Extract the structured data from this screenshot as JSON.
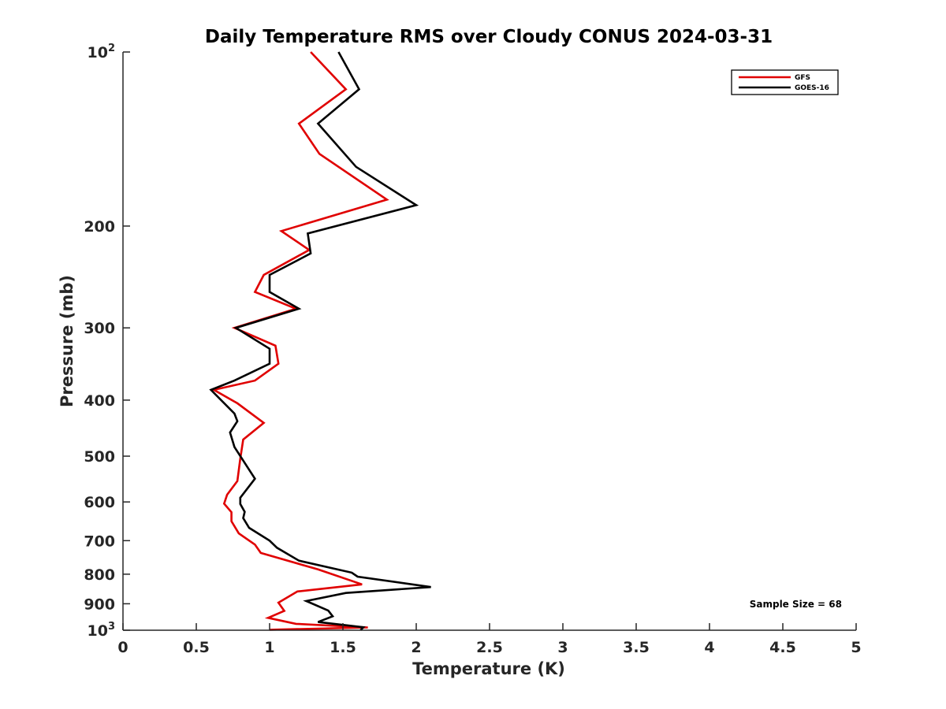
{
  "chart_data": {
    "type": "line",
    "title": "Daily Temperature RMS over Cloudy CONUS 2024-03-31",
    "xlabel": "Temperature (K)",
    "ylabel": "Pressure (mb)",
    "xlim": [
      0,
      5
    ],
    "ylim": [
      100,
      1000
    ],
    "y_scale": "log",
    "y_reversed": true,
    "x_ticks": [
      "0",
      "0.5",
      "1",
      "1.5",
      "2",
      "2.5",
      "3",
      "3.5",
      "4",
      "4.5",
      "5"
    ],
    "y_ticks": [
      {
        "value": 100,
        "label": "10",
        "sup": "2"
      },
      {
        "value": 200,
        "label": "200",
        "sup": ""
      },
      {
        "value": 300,
        "label": "300",
        "sup": ""
      },
      {
        "value": 400,
        "label": "400",
        "sup": ""
      },
      {
        "value": 500,
        "label": "500",
        "sup": ""
      },
      {
        "value": 600,
        "label": "600",
        "sup": ""
      },
      {
        "value": 700,
        "label": "700",
        "sup": ""
      },
      {
        "value": 800,
        "label": "800",
        "sup": ""
      },
      {
        "value": 900,
        "label": "900",
        "sup": ""
      },
      {
        "value": 1000,
        "label": "10",
        "sup": "3"
      }
    ],
    "grid": false,
    "legend_position": "top-right",
    "annotation": "Sample Size = 68",
    "series": [
      {
        "name": "GFS",
        "color": "#e00000",
        "points": [
          [
            1.28,
            100
          ],
          [
            1.52,
            116
          ],
          [
            1.2,
            133
          ],
          [
            1.34,
            150
          ],
          [
            1.8,
            180
          ],
          [
            1.08,
            204
          ],
          [
            1.27,
            220
          ],
          [
            0.96,
            243
          ],
          [
            0.9,
            260
          ],
          [
            1.18,
            278
          ],
          [
            0.76,
            300
          ],
          [
            1.04,
            322
          ],
          [
            1.06,
            346
          ],
          [
            0.9,
            370
          ],
          [
            0.62,
            384
          ],
          [
            0.78,
            405
          ],
          [
            0.96,
            438
          ],
          [
            0.82,
            468
          ],
          [
            0.8,
            505
          ],
          [
            0.78,
            552
          ],
          [
            0.71,
            583
          ],
          [
            0.69,
            604
          ],
          [
            0.74,
            625
          ],
          [
            0.74,
            648
          ],
          [
            0.79,
            680
          ],
          [
            0.9,
            711
          ],
          [
            0.94,
            735
          ],
          [
            1.33,
            785
          ],
          [
            1.63,
            833
          ],
          [
            1.19,
            857
          ],
          [
            1.06,
            896
          ],
          [
            1.1,
            926
          ],
          [
            0.99,
            952
          ],
          [
            1.18,
            975
          ],
          [
            1.67,
            989
          ],
          [
            1.0,
            998
          ]
        ]
      },
      {
        "name": "GOES-16",
        "color": "#000000",
        "points": [
          [
            1.47,
            100
          ],
          [
            1.61,
            116
          ],
          [
            1.33,
            133
          ],
          [
            1.59,
            158
          ],
          [
            2.0,
            184
          ],
          [
            1.26,
            206
          ],
          [
            1.28,
            223
          ],
          [
            1.0,
            243
          ],
          [
            1.0,
            260
          ],
          [
            1.2,
            278
          ],
          [
            0.77,
            300
          ],
          [
            1.0,
            326
          ],
          [
            1.0,
            346
          ],
          [
            0.76,
            370
          ],
          [
            0.6,
            384
          ],
          [
            0.76,
            422
          ],
          [
            0.78,
            435
          ],
          [
            0.73,
            455
          ],
          [
            0.76,
            482
          ],
          [
            0.9,
            547
          ],
          [
            0.8,
            590
          ],
          [
            0.8,
            605
          ],
          [
            0.83,
            624
          ],
          [
            0.82,
            640
          ],
          [
            0.86,
            665
          ],
          [
            1.0,
            700
          ],
          [
            1.05,
            720
          ],
          [
            1.2,
            758
          ],
          [
            1.56,
            795
          ],
          [
            1.6,
            808
          ],
          [
            2.1,
            842
          ],
          [
            1.52,
            862
          ],
          [
            1.25,
            890
          ],
          [
            1.4,
            925
          ],
          [
            1.43,
            946
          ],
          [
            1.33,
            968
          ],
          [
            1.64,
            988
          ],
          [
            1.62,
            1000
          ]
        ]
      }
    ]
  }
}
